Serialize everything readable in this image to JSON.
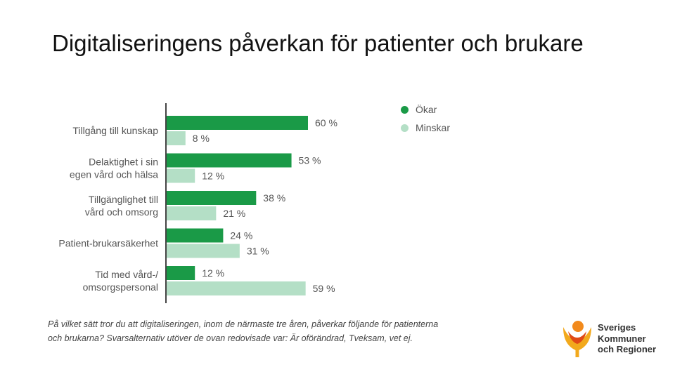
{
  "slide": {
    "title": "Digitaliseringens påverkan för patienter och brukare",
    "footnote": "På vilket sätt tror du att digitaliseringen, inom de närmaste tre åren, påverkar följande för patienterna och brukarna? Svarsalternativ utöver de ovan redovisade var: Är oförändrad, Tveksam, vet ej.",
    "logo": {
      "name": "skr-logo",
      "text": [
        "Sveriges",
        "Kommuner",
        "och Regioner"
      ]
    }
  },
  "colors": {
    "okar": "#1a9a47",
    "minskar": "#b4dfc6",
    "axis": "#444444"
  },
  "chart_data": {
    "type": "bar",
    "orientation": "horizontal",
    "categories": [
      [
        "Tillgång till kunskap"
      ],
      [
        "Delaktighet i sin",
        "egen vård och hälsa"
      ],
      [
        "Tillgänglighet till",
        "vård och omsorg"
      ],
      [
        "Patient-brukarsäkerhet"
      ],
      [
        "Tid med vård-/",
        "omsorgspersonal"
      ]
    ],
    "series": [
      {
        "name": "Ökar",
        "values": [
          60,
          53,
          38,
          24,
          12
        ],
        "labels": [
          "60 %",
          "53 %",
          "38 %",
          "24 %",
          "12 %"
        ]
      },
      {
        "name": "Minskar",
        "values": [
          8,
          12,
          21,
          31,
          59
        ],
        "labels": [
          "8 %",
          "12 %",
          "21 %",
          "31 %",
          "59 %"
        ]
      }
    ],
    "xlim": [
      0,
      100
    ],
    "legend_position": "top-right",
    "grid": false
  }
}
